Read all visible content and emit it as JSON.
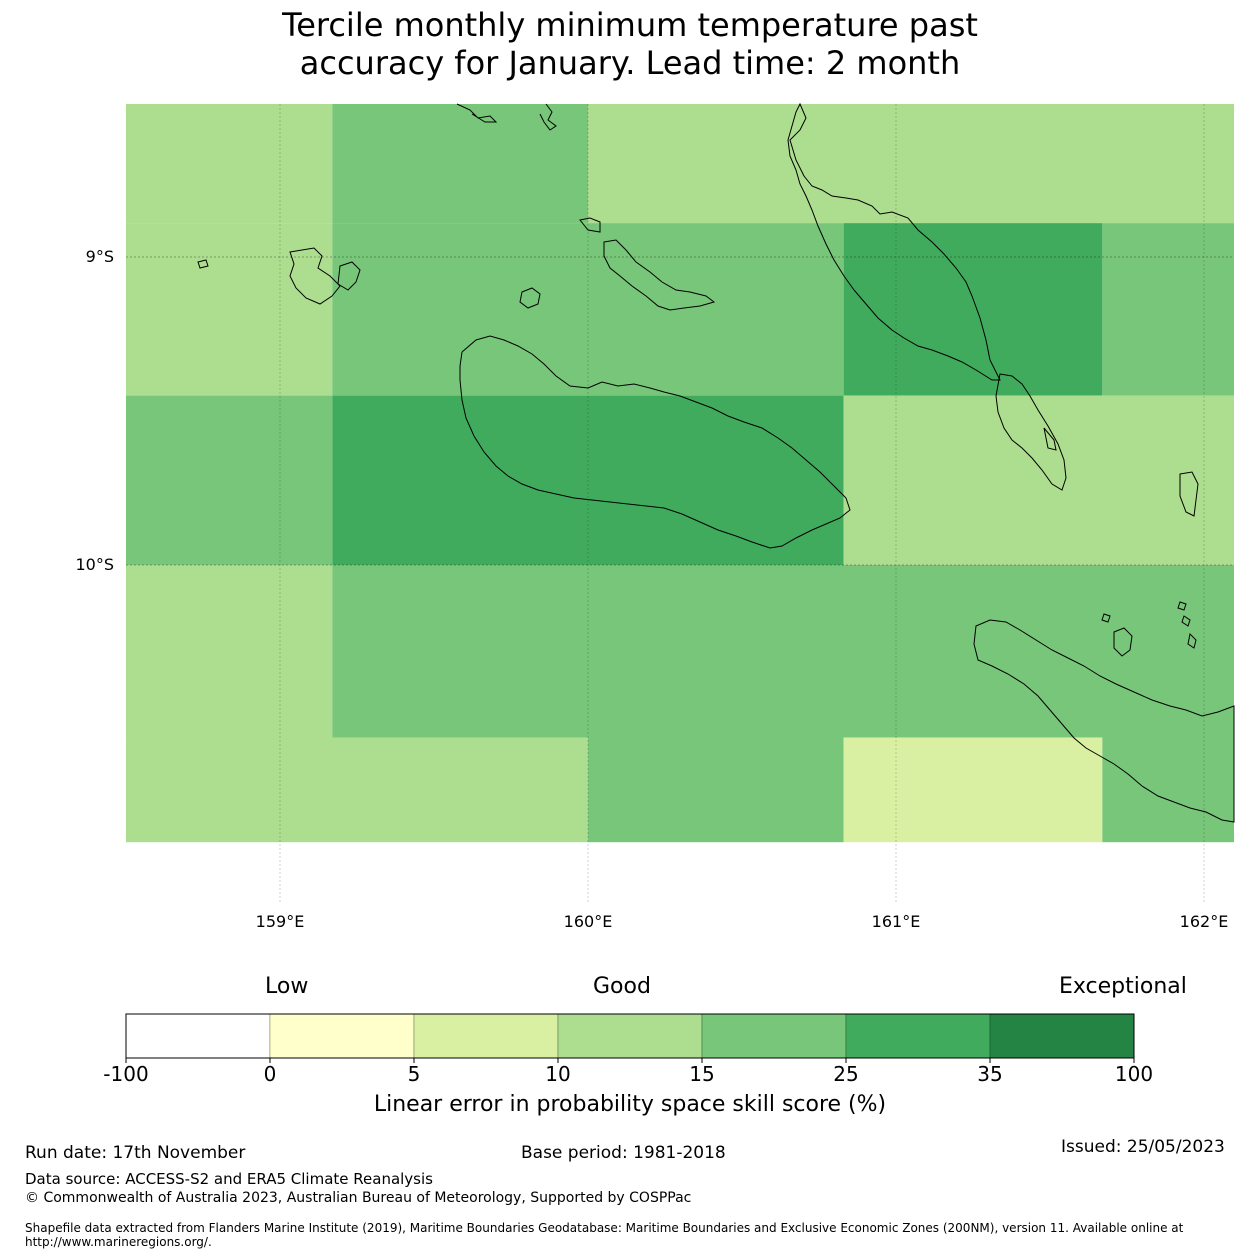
{
  "title_line1": "Tercile monthly minimum temperature past",
  "title_line2": "accuracy for January. Lead time: 2 month",
  "map": {
    "lon_range": [
      158.5,
      162.1
    ],
    "lat_range": [
      -10.9,
      -8.5
    ],
    "lat_ticks": [
      {
        "value": -9,
        "label": "9°S"
      },
      {
        "value": -10,
        "label": "10°S"
      }
    ],
    "lon_ticks": [
      {
        "value": 159,
        "label": "159°E"
      },
      {
        "value": 160,
        "label": "160°E"
      },
      {
        "value": 161,
        "label": "161°E"
      },
      {
        "value": 162,
        "label": "162°E"
      }
    ],
    "cells": [
      {
        "lon": [
          158.5,
          159.17
        ],
        "lat": [
          -8.5,
          -8.89
        ],
        "skill_class": "10-15"
      },
      {
        "lon": [
          159.17,
          160.0
        ],
        "lat": [
          -8.5,
          -8.89
        ],
        "skill_class": "15-25"
      },
      {
        "lon": [
          160.0,
          162.1
        ],
        "lat": [
          -8.5,
          -8.89
        ],
        "skill_class": "10-15"
      },
      {
        "lon": [
          158.5,
          159.17
        ],
        "lat": [
          -8.89,
          -9.45
        ],
        "skill_class": "10-15"
      },
      {
        "lon": [
          159.17,
          160.83
        ],
        "lat": [
          -8.89,
          -9.45
        ],
        "skill_class": "15-25"
      },
      {
        "lon": [
          160.83,
          161.67
        ],
        "lat": [
          -8.89,
          -9.45
        ],
        "skill_class": "25-35"
      },
      {
        "lon": [
          161.67,
          162.1
        ],
        "lat": [
          -8.89,
          -9.45
        ],
        "skill_class": "15-25"
      },
      {
        "lon": [
          158.5,
          159.17
        ],
        "lat": [
          -9.45,
          -10.0
        ],
        "skill_class": "15-25"
      },
      {
        "lon": [
          159.17,
          160.83
        ],
        "lat": [
          -9.45,
          -10.0
        ],
        "skill_class": "25-35"
      },
      {
        "lon": [
          160.83,
          162.1
        ],
        "lat": [
          -9.45,
          -10.0
        ],
        "skill_class": "10-15"
      },
      {
        "lon": [
          158.5,
          159.17
        ],
        "lat": [
          -10.0,
          -10.56
        ],
        "skill_class": "10-15"
      },
      {
        "lon": [
          159.17,
          162.1
        ],
        "lat": [
          -10.0,
          -10.56
        ],
        "skill_class": "15-25"
      },
      {
        "lon": [
          158.5,
          160.0
        ],
        "lat": [
          -10.56,
          -10.9
        ],
        "skill_class": "10-15"
      },
      {
        "lon": [
          160.0,
          160.83
        ],
        "lat": [
          -10.56,
          -10.9
        ],
        "skill_class": "15-25"
      },
      {
        "lon": [
          160.83,
          161.67
        ],
        "lat": [
          -10.56,
          -10.9
        ],
        "skill_class": "5-10"
      },
      {
        "lon": [
          161.67,
          162.1
        ],
        "lat": [
          -10.56,
          -10.9
        ],
        "skill_class": "15-25"
      }
    ]
  },
  "colorbar": {
    "word_low": "Low",
    "word_good": "Good",
    "word_exceptional": "Exceptional",
    "ticks": [
      "-100",
      "0",
      "5",
      "10",
      "15",
      "25",
      "35",
      "100"
    ],
    "classes": [
      {
        "range": "-100-0",
        "color": "#ffffff"
      },
      {
        "range": "0-5",
        "color": "#ffffcc"
      },
      {
        "range": "5-10",
        "color": "#d9f0a3"
      },
      {
        "range": "10-15",
        "color": "#addd8e"
      },
      {
        "range": "15-25",
        "color": "#78c679"
      },
      {
        "range": "25-35",
        "color": "#41ab5d"
      },
      {
        "range": "35-100",
        "color": "#238443"
      }
    ],
    "label": "Linear error in probability space skill score (%)"
  },
  "footer": {
    "run_date": "Run date: 17th November",
    "base_period": "Base period: 1981-2018",
    "issued": "Issued: 25/05/2023",
    "data_source": "Data source: ACCESS-S2 and ERA5 Climate Reanalysis",
    "copyright": "© Commonwealth of Australia 2023, Australian Bureau of Meteorology, Supported by COSPPac",
    "shapefile_line1": "Shapefile data extracted from Flanders Marine Institute (2019), Maritime Boundaries Geodatabase: Maritime Boundaries and Exclusive Economic Zones (200NM), version 11. Available online at",
    "shapefile_line2": "http://www.marineregions.org/."
  }
}
